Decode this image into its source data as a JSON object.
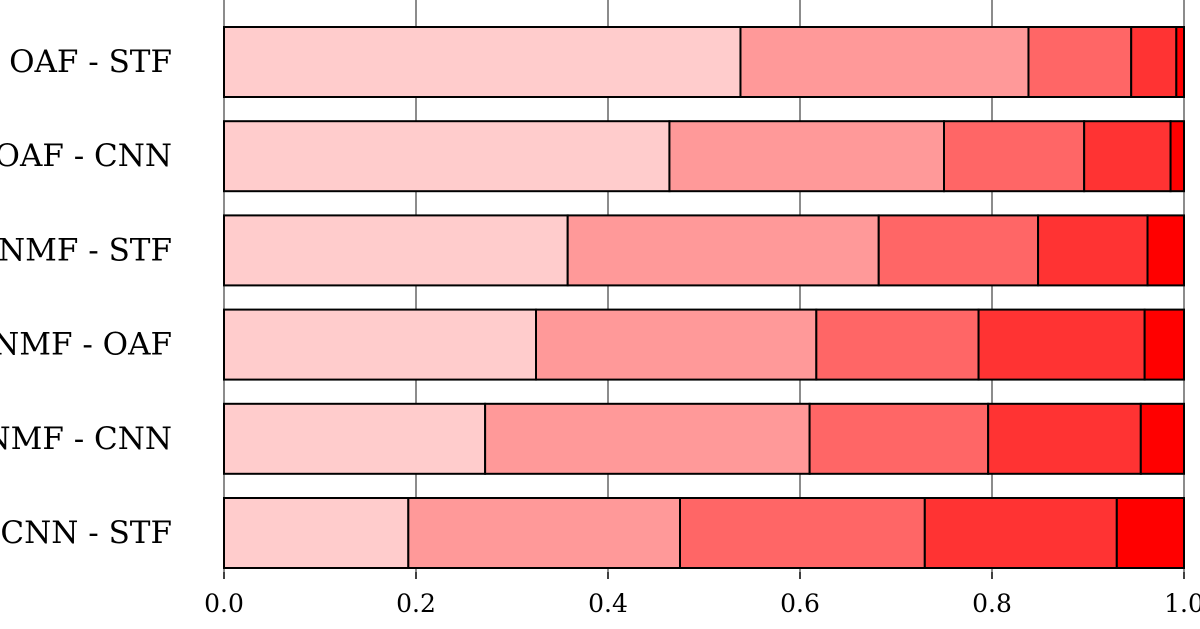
{
  "chart_data": {
    "type": "bar",
    "orientation": "horizontal",
    "stacked": true,
    "title": "",
    "xlabel": "",
    "ylabel": "",
    "xlim": [
      0,
      1
    ],
    "xticks": [
      "0.0",
      "0.2",
      "0.4",
      "0.6",
      "0.8",
      "1.0"
    ],
    "grid": "vertical",
    "legend": "none",
    "categories": [
      "OAF - STF",
      "OAF - CNN",
      "NMF - STF",
      "NMF - OAF",
      "NMF - CNN",
      "CNN - STF"
    ],
    "segment_colors": [
      "#ffcccc",
      "#ff9999",
      "#ff6666",
      "#ff3333",
      "#ff0000"
    ],
    "stack_values": [
      [
        0.538,
        0.3,
        0.107,
        0.047,
        0.008
      ],
      [
        0.464,
        0.286,
        0.146,
        0.09,
        0.014
      ],
      [
        0.358,
        0.324,
        0.166,
        0.114,
        0.038
      ],
      [
        0.325,
        0.292,
        0.169,
        0.173,
        0.041
      ],
      [
        0.272,
        0.338,
        0.186,
        0.159,
        0.045
      ],
      [
        0.192,
        0.283,
        0.255,
        0.2,
        0.07
      ]
    ]
  }
}
